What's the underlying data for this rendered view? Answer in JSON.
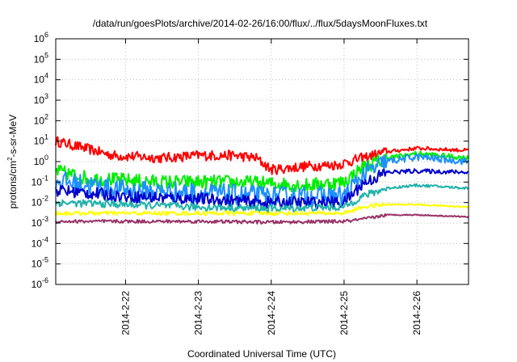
{
  "chart_data": {
    "type": "line",
    "title": "/data/run/goesPlots/archive/2014-02-26/16:00/flux/../flux/5daysMoonFluxes.txt",
    "xlabel": "Coordinated Universal Time (UTC)",
    "ylabel": "protons/cm²-s-sr-MeV",
    "y_scale": "log",
    "ylim": [
      1e-06,
      1000000.0
    ],
    "xlim": [
      "2014-02-21 01:00",
      "2014-02-26 17:00"
    ],
    "grid": true,
    "x_ticks": [
      "2014-2-22",
      "2014-2-23",
      "2014-2-24",
      "2014-2-25",
      "2014-2-26"
    ],
    "y_ticks": [
      {
        "base": "10",
        "exp": "-6"
      },
      {
        "base": "10",
        "exp": "-5"
      },
      {
        "base": "10",
        "exp": "-4"
      },
      {
        "base": "10",
        "exp": "-3"
      },
      {
        "base": "10",
        "exp": "-2"
      },
      {
        "base": "10",
        "exp": "-1"
      },
      {
        "base": "10",
        "exp": "0"
      },
      {
        "base": "10",
        "exp": "1"
      },
      {
        "base": "10",
        "exp": "2"
      },
      {
        "base": "10",
        "exp": "3"
      },
      {
        "base": "10",
        "exp": "4"
      },
      {
        "base": "10",
        "exp": "5"
      },
      {
        "base": "10",
        "exp": "6"
      }
    ],
    "series": [
      {
        "color": "#ff0000",
        "jitter": 0.25,
        "points": [
          [
            "2014-02-21 01:00",
            10
          ],
          [
            "2014-02-21 12:00",
            4
          ],
          [
            "2014-02-21 20:00",
            2
          ],
          [
            "2014-02-22 12:00",
            1.5
          ],
          [
            "2014-02-23 00:00",
            2
          ],
          [
            "2014-02-23 12:00",
            2
          ],
          [
            "2014-02-23 19:00",
            1.5
          ],
          [
            "2014-02-24 00:00",
            0.4
          ],
          [
            "2014-02-24 12:00",
            0.6
          ],
          [
            "2014-02-24 22:00",
            0.7
          ],
          [
            "2014-02-25 06:00",
            1.5
          ],
          [
            "2014-02-25 14:00",
            3
          ],
          [
            "2014-02-26 00:00",
            4.5
          ],
          [
            "2014-02-26 17:00",
            3.5
          ]
        ]
      },
      {
        "color": "#00ee00",
        "jitter": 0.35,
        "points": [
          [
            "2014-02-21 01:00",
            0.35
          ],
          [
            "2014-02-21 12:00",
            0.15
          ],
          [
            "2014-02-22 12:00",
            0.1
          ],
          [
            "2014-02-23 12:00",
            0.1
          ],
          [
            "2014-02-24 12:00",
            0.07
          ],
          [
            "2014-02-25 00:00",
            0.1
          ],
          [
            "2014-02-25 06:00",
            0.5
          ],
          [
            "2014-02-25 14:00",
            1.5
          ],
          [
            "2014-02-26 00:00",
            2.5
          ],
          [
            "2014-02-26 17:00",
            1.5
          ]
        ]
      },
      {
        "color": "#1e90ff",
        "jitter": 0.5,
        "points": [
          [
            "2014-02-21 01:00",
            0.12
          ],
          [
            "2014-02-22 00:00",
            0.04
          ],
          [
            "2014-02-23 00:00",
            0.03
          ],
          [
            "2014-02-24 00:00",
            0.02
          ],
          [
            "2014-02-25 00:00",
            0.02
          ],
          [
            "2014-02-25 06:00",
            0.2
          ],
          [
            "2014-02-25 14:00",
            1
          ],
          [
            "2014-02-26 00:00",
            1.7
          ],
          [
            "2014-02-26 17:00",
            1
          ]
        ]
      },
      {
        "color": "#0000cc",
        "jitter": 0.3,
        "points": [
          [
            "2014-02-21 01:00",
            0.04
          ],
          [
            "2014-02-22 00:00",
            0.02
          ],
          [
            "2014-02-23 00:00",
            0.015
          ],
          [
            "2014-02-24 00:00",
            0.01
          ],
          [
            "2014-02-25 00:00",
            0.01
          ],
          [
            "2014-02-25 06:00",
            0.08
          ],
          [
            "2014-02-25 14:00",
            0.3
          ],
          [
            "2014-02-26 00:00",
            0.35
          ],
          [
            "2014-02-26 17:00",
            0.3
          ]
        ]
      },
      {
        "color": "#20b2aa",
        "jitter": 0.18,
        "points": [
          [
            "2014-02-21 01:00",
            0.01
          ],
          [
            "2014-02-22 00:00",
            0.008
          ],
          [
            "2014-02-23 00:00",
            0.006
          ],
          [
            "2014-02-24 00:00",
            0.005
          ],
          [
            "2014-02-25 00:00",
            0.006
          ],
          [
            "2014-02-25 06:00",
            0.02
          ],
          [
            "2014-02-25 14:00",
            0.05
          ],
          [
            "2014-02-26 00:00",
            0.07
          ],
          [
            "2014-02-26 17:00",
            0.05
          ]
        ]
      },
      {
        "color": "#ffff00",
        "jitter": 0.1,
        "points": [
          [
            "2014-02-21 01:00",
            0.003
          ],
          [
            "2014-02-22 00:00",
            0.003
          ],
          [
            "2014-02-23 00:00",
            0.003
          ],
          [
            "2014-02-24 00:00",
            0.003
          ],
          [
            "2014-02-25 00:00",
            0.003
          ],
          [
            "2014-02-25 06:00",
            0.006
          ],
          [
            "2014-02-25 14:00",
            0.008
          ],
          [
            "2014-02-26 00:00",
            0.008
          ],
          [
            "2014-02-26 17:00",
            0.006
          ]
        ]
      },
      {
        "color": "#993366",
        "jitter": 0.08,
        "points": [
          [
            "2014-02-21 01:00",
            0.0012
          ],
          [
            "2014-02-22 00:00",
            0.0012
          ],
          [
            "2014-02-23 00:00",
            0.0012
          ],
          [
            "2014-02-24 00:00",
            0.0011
          ],
          [
            "2014-02-25 00:00",
            0.0012
          ],
          [
            "2014-02-25 06:00",
            0.0015
          ],
          [
            "2014-02-25 14:00",
            0.0025
          ],
          [
            "2014-02-26 00:00",
            0.0025
          ],
          [
            "2014-02-26 17:00",
            0.002
          ]
        ]
      }
    ]
  }
}
